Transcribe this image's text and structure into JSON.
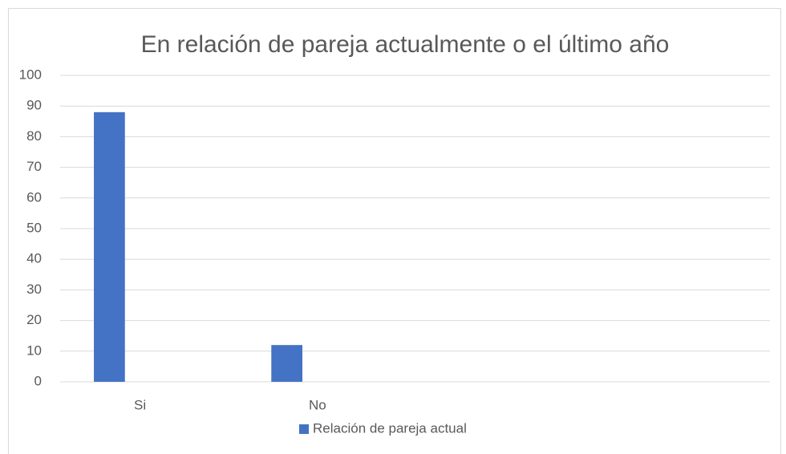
{
  "chart_data": {
    "type": "bar",
    "title": "En relación de pareja actualmente o el último año",
    "categories": [
      "Si",
      "No",
      null,
      null
    ],
    "series": [
      {
        "name": "Relación de pareja actual",
        "color": "#4472c4",
        "values": [
          88,
          12,
          null,
          null
        ]
      }
    ],
    "ylim": [
      0,
      100
    ],
    "yticks": [
      0,
      10,
      20,
      30,
      40,
      50,
      60,
      70,
      80,
      90,
      100
    ],
    "grid": true,
    "legend": "bottom"
  }
}
